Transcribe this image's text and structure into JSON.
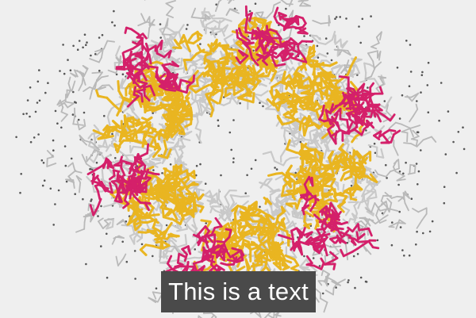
{
  "caption": {
    "text": "This is a text"
  },
  "colors": {
    "background": "#efefef",
    "pink": "#d4206a",
    "gold": "#e9b521",
    "gray": "#c9c9c9",
    "dots": "#555555",
    "caption_bg": "#4a4a4a",
    "caption_fg": "#ffffff"
  }
}
